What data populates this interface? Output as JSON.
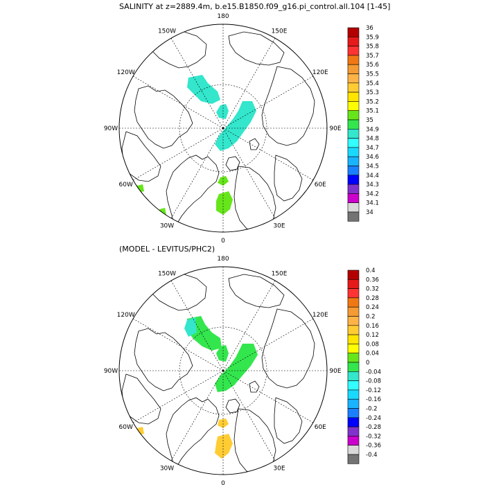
{
  "panels": [
    {
      "title": "SALINITY at z=2889.4m, b.e15.B1850.f09_g16.pi_control.all.104 [1-45]",
      "lon_labels": [
        "180",
        "150E",
        "120E",
        "90E",
        "60E",
        "30E",
        "0",
        "30W",
        "60W",
        "90W",
        "120W",
        "150W"
      ],
      "colorbar": {
        "labels": [
          "36",
          "35.9",
          "35.8",
          "35.7",
          "35.6",
          "35.5",
          "35.4",
          "35.3",
          "35.2",
          "35.1",
          "35",
          "34.9",
          "34.8",
          "34.7",
          "34.6",
          "34.5",
          "34.4",
          "34.3",
          "34.2",
          "34.1",
          "34"
        ],
        "colors": [
          "#b30000",
          "#e61a1a",
          "#ff3333",
          "#f07814",
          "#f59b33",
          "#ffb347",
          "#ffcc33",
          "#ffe500",
          "#ffff00",
          "#66e61a",
          "#33e64d",
          "#33e6cc",
          "#33ffff",
          "#1ad9ff",
          "#1ab3ff",
          "#1a80ff",
          "#0000ff",
          "#8033cc",
          "#cc00cc",
          "#d9d9d9",
          "#737373"
        ]
      },
      "patch_color": "#33e6cc",
      "patch_color2": "#66e61a"
    },
    {
      "title": "(MODEL - LEVITUS/PHC2)",
      "lon_labels": [
        "180",
        "150E",
        "120E",
        "90E",
        "60E",
        "30E",
        "0",
        "30W",
        "60W",
        "90W",
        "120W",
        "150W"
      ],
      "colorbar": {
        "labels": [
          "0.4",
          "0.36",
          "0.32",
          "0.28",
          "0.24",
          "0.2",
          "0.16",
          "0.12",
          "0.08",
          "0.04",
          "0",
          "-0.04",
          "-0.08",
          "-0.12",
          "-0.16",
          "-0.2",
          "-0.24",
          "-0.28",
          "-0.32",
          "-0.36",
          "-0.4"
        ],
        "colors": [
          "#b30000",
          "#e61a1a",
          "#ff3333",
          "#f07814",
          "#f59b33",
          "#ffb347",
          "#ffcc33",
          "#ffe500",
          "#ffff00",
          "#66e61a",
          "#33e64d",
          "#33e6cc",
          "#33ffff",
          "#1ad9ff",
          "#1ab3ff",
          "#1a80ff",
          "#0000ff",
          "#8033cc",
          "#cc00cc",
          "#d9d9d9",
          "#737373"
        ]
      },
      "patch_color": "#33e64d",
      "patch_color2": "#ffcc33"
    }
  ]
}
